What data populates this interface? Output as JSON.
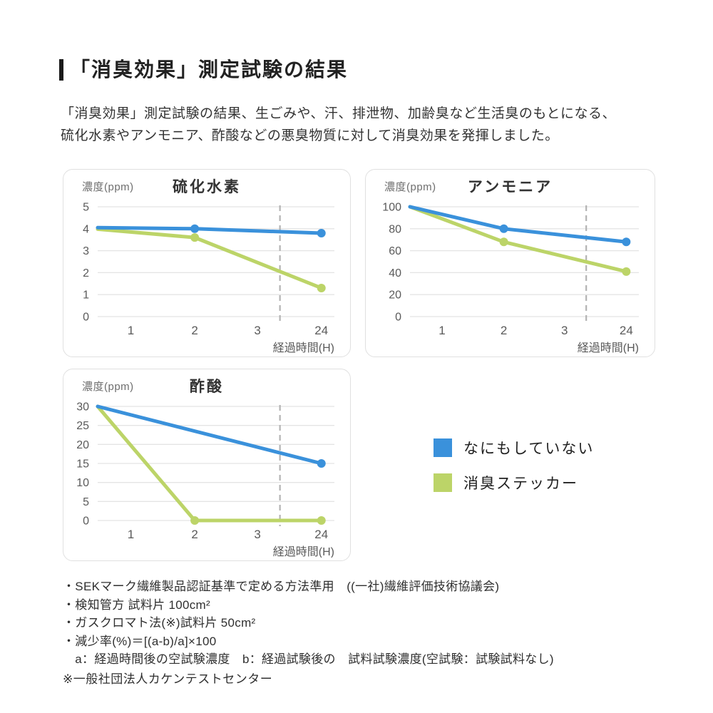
{
  "page": {
    "title": "「消臭効果」測定試験の結果",
    "intro_line1": "「消臭効果」測定試験の結果、生ごみや、汗、排泄物、加齢臭など生活臭のもとになる、",
    "intro_line2": "硫化水素やアンモニア、酢酸などの悪臭物質に対して消臭効果を発揮しました。"
  },
  "colors": {
    "blue": "#3a91db",
    "green": "#bcd468",
    "grid": "#e4e4e4",
    "dashed": "#b3b3b3",
    "axis_text": "#5a5a5a"
  },
  "legend": {
    "items": [
      {
        "label": "なにもしていない",
        "color": "#3a91db"
      },
      {
        "label": "消臭ステッカー",
        "color": "#bcd468"
      }
    ]
  },
  "chart_data": [
    {
      "type": "line",
      "title": "硫化水素",
      "ylabel": "濃度(ppm)",
      "xlabel": "経過時間(H)",
      "x_ticks": [
        "1",
        "2",
        "3",
        "24"
      ],
      "y_ticks": [
        5,
        4,
        3,
        2,
        1,
        0
      ],
      "ylim": [
        0,
        5
      ],
      "dashed_line_fraction": 0.77,
      "series": [
        {
          "name": "なにもしていない",
          "color": "#3a91db",
          "points": [
            [
              0,
              4.05
            ],
            [
              2,
              4.0
            ],
            [
              24,
              3.8
            ]
          ]
        },
        {
          "name": "消臭ステッカー",
          "color": "#bcd468",
          "points": [
            [
              0,
              3.98
            ],
            [
              2,
              3.6
            ],
            [
              24,
              1.3
            ]
          ]
        }
      ]
    },
    {
      "type": "line",
      "title": "アンモニア",
      "ylabel": "濃度(ppm)",
      "xlabel": "経過時間(H)",
      "x_ticks": [
        "1",
        "2",
        "3",
        "24"
      ],
      "y_ticks": [
        100,
        80,
        60,
        40,
        20,
        0
      ],
      "ylim": [
        0,
        100
      ],
      "dashed_line_fraction": 0.77,
      "series": [
        {
          "name": "なにもしていない",
          "color": "#3a91db",
          "points": [
            [
              0,
              100
            ],
            [
              2,
              80
            ],
            [
              24,
              68
            ]
          ]
        },
        {
          "name": "消臭ステッカー",
          "color": "#bcd468",
          "points": [
            [
              0,
              100
            ],
            [
              2,
              68
            ],
            [
              24,
              41
            ]
          ]
        }
      ]
    },
    {
      "type": "line",
      "title": "酢酸",
      "ylabel": "濃度(ppm)",
      "xlabel": "経過時間(H)",
      "x_ticks": [
        "1",
        "2",
        "3",
        "24"
      ],
      "y_ticks": [
        30,
        25,
        20,
        15,
        10,
        5,
        0
      ],
      "ylim": [
        0,
        30
      ],
      "dashed_line_fraction": 0.77,
      "series": [
        {
          "name": "なにもしていない",
          "color": "#3a91db",
          "points": [
            [
              0,
              30
            ],
            [
              24,
              15
            ]
          ]
        },
        {
          "name": "消臭ステッカー",
          "color": "#bcd468",
          "points": [
            [
              0,
              30
            ],
            [
              2,
              0
            ],
            [
              24,
              0
            ]
          ]
        }
      ]
    }
  ],
  "footnotes": {
    "items": [
      "・SEKマーク繊維製品認証基準で定める方法準用　((一社)繊維評価技術協議会)",
      "・検知管方 試料片 100cm²",
      "・ガスクロマト法(※)試料片 50cm²",
      "・減少率(%)＝[(a-b)/a]×100",
      "　a：経過時間後の空試験濃度　b：経過試験後の　試料試験濃度(空試験：試験試料なし)"
    ],
    "source": "※一般社団法人カケンテストセンター"
  }
}
